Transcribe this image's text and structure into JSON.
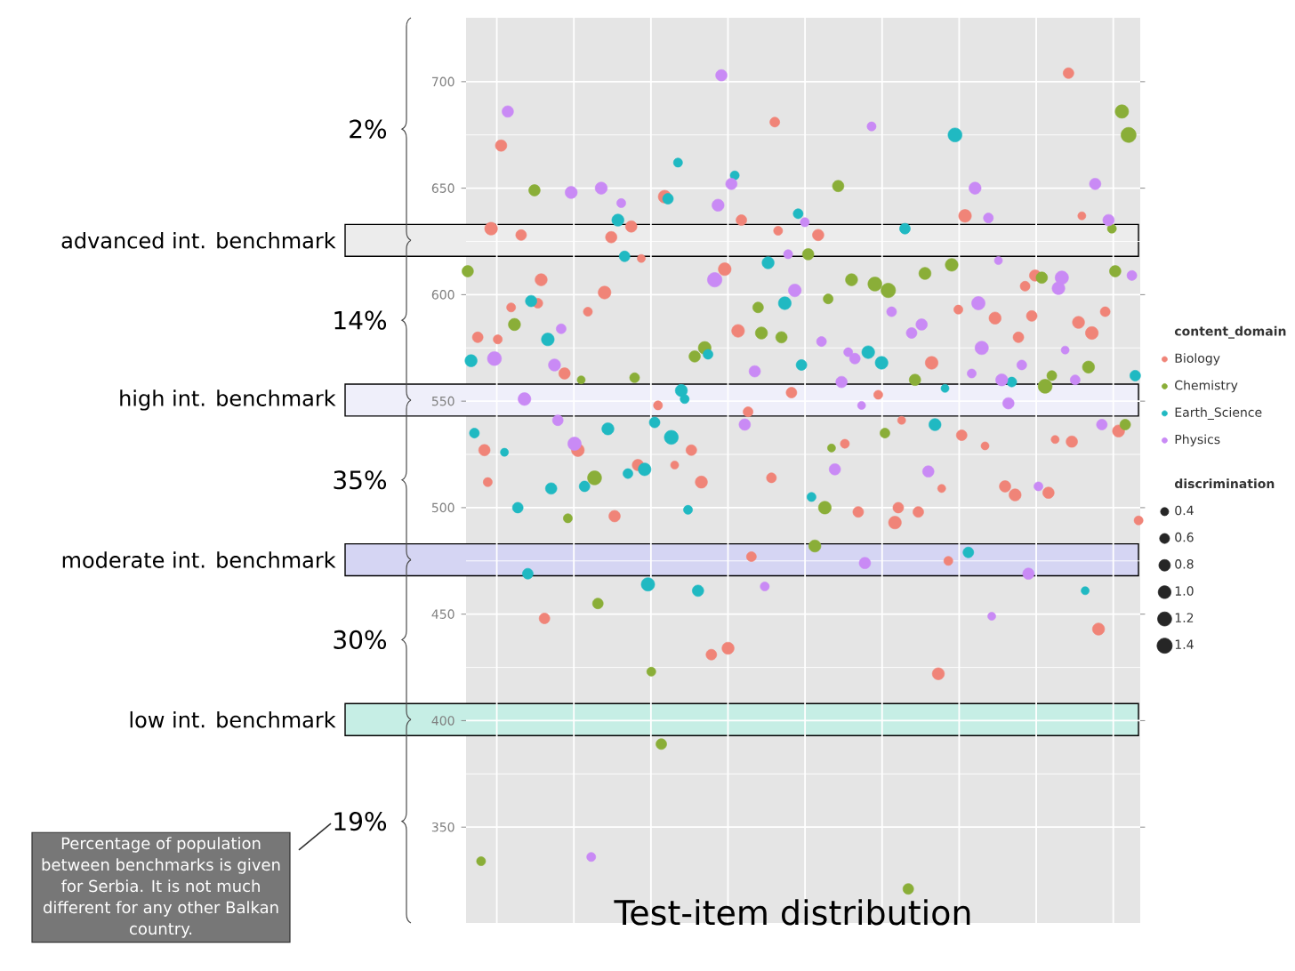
{
  "chart_data": {
    "type": "bubble",
    "title": "Test-item distribution",
    "categories": [
      null,
      null,
      null,
      null,
      null,
      null,
      null,
      null,
      null,
      null,
      null,
      null,
      null,
      null,
      null,
      null,
      null,
      null,
      null,
      null,
      null,
      null,
      null,
      null,
      null,
      null,
      null,
      null,
      null,
      null,
      null,
      null,
      null,
      null,
      null,
      null,
      null,
      null,
      null,
      null,
      null,
      null,
      null,
      null,
      null,
      null,
      null,
      null,
      null,
      null,
      null,
      null,
      null,
      null,
      null,
      null,
      null,
      null,
      null,
      null,
      null,
      null,
      null,
      null,
      null,
      null,
      null,
      null,
      null,
      null,
      null,
      null,
      null,
      null,
      null,
      null,
      null,
      null,
      null,
      null,
      null,
      null,
      null,
      null,
      null,
      null,
      null,
      null,
      null,
      null,
      null,
      null,
      null,
      null,
      null,
      null,
      null,
      null,
      null,
      null,
      null,
      null,
      null,
      null,
      null,
      null,
      null,
      null,
      null,
      null,
      null,
      null,
      null,
      null,
      null,
      null,
      null,
      null,
      null,
      null,
      null,
      null,
      null,
      null,
      null,
      null,
      null,
      null,
      null,
      null,
      null,
      null,
      null,
      null,
      null,
      null,
      null,
      null,
      null,
      null,
      null,
      null,
      null,
      null,
      null,
      null,
      null,
      null,
      null,
      null,
      null,
      null,
      null,
      null,
      null,
      null,
      null,
      null,
      null,
      null,
      null,
      null,
      null,
      null,
      null,
      null,
      null,
      null,
      null,
      null,
      null,
      null,
      null,
      null,
      null,
      null,
      null,
      null,
      null,
      null,
      null,
      null,
      null,
      null,
      null,
      null,
      null,
      null,
      null,
      null,
      null,
      null,
      null,
      null,
      null,
      null,
      null,
      null,
      null,
      null,
      null,
      null
    ],
    "series": [
      {
        "name": "Biology",
        "color": "#f08478",
        "values": [
          null,
          null,
          null,
          580,
          null,
          527,
          512,
          631,
          null,
          579,
          670,
          null,
          null,
          594,
          null,
          null,
          628,
          null,
          null,
          null,
          null,
          596,
          607,
          448,
          null,
          null,
          null,
          null,
          null,
          563,
          null,
          null,
          null,
          527,
          null,
          null,
          592,
          null,
          null,
          null,
          null,
          601,
          null,
          627,
          496,
          null,
          null,
          null,
          null,
          632,
          null,
          520,
          617,
          null,
          null,
          null,
          null,
          548,
          null,
          646,
          null,
          null,
          520,
          null,
          null,
          null,
          null,
          527,
          null,
          null,
          512,
          null,
          null,
          431,
          null,
          null,
          null,
          612,
          434,
          null,
          null,
          583,
          635,
          null,
          545,
          477,
          null,
          null,
          null,
          null,
          null,
          514,
          681,
          630,
          null,
          null,
          null,
          554,
          null,
          null,
          null,
          null,
          null,
          null,
          null,
          628,
          null,
          null,
          null,
          null,
          null,
          null,
          null,
          530,
          null,
          null,
          null,
          498,
          null,
          null,
          null,
          null,
          null,
          553,
          null,
          null,
          null,
          null,
          493,
          500,
          541,
          null,
          null,
          null,
          null,
          498,
          null,
          null,
          null,
          568,
          null,
          422,
          509,
          null,
          475,
          null,
          null,
          593,
          534,
          637,
          null,
          null,
          null,
          null,
          null,
          529,
          null,
          null,
          589,
          null,
          null,
          510,
          null,
          null,
          506,
          580,
          null,
          604,
          null,
          590,
          609,
          null,
          null,
          null,
          507,
          null,
          532,
          null,
          null,
          null,
          704,
          531,
          null,
          587,
          637,
          null,
          null,
          582,
          null,
          443,
          null,
          592,
          null,
          null,
          null,
          536,
          null,
          null,
          null,
          null,
          null,
          494
        ],
        "sizes": [
          null,
          null,
          null,
          0.7,
          null,
          0.8,
          0.5,
          1.0,
          null,
          0.5,
          0.8,
          null,
          null,
          0.5,
          null,
          null,
          0.7,
          null,
          null,
          null,
          null,
          0.6,
          0.9,
          0.7,
          null,
          null,
          null,
          null,
          null,
          0.8,
          null,
          null,
          null,
          1.0,
          null,
          null,
          0.5,
          null,
          null,
          null,
          null,
          1.0,
          null,
          0.8,
          0.8,
          null,
          null,
          null,
          null,
          0.8,
          null,
          0.8,
          0.4,
          null,
          null,
          null,
          null,
          0.5,
          null,
          1.0,
          null,
          null,
          0.4,
          null,
          null,
          null,
          null,
          0.7,
          null,
          null,
          0.9,
          null,
          null,
          0.7,
          null,
          null,
          null,
          1.0,
          0.9,
          null,
          null,
          1.0,
          0.7,
          null,
          0.6,
          0.6,
          null,
          null,
          null,
          null,
          null,
          0.6,
          0.6,
          0.5,
          null,
          null,
          null,
          0.7,
          null,
          null,
          null,
          null,
          null,
          null,
          null,
          0.8,
          null,
          null,
          null,
          null,
          null,
          null,
          null,
          0.5,
          null,
          null,
          null,
          0.7,
          null,
          null,
          null,
          null,
          null,
          0.5,
          null,
          null,
          null,
          null,
          1.0,
          0.7,
          0.4,
          null,
          null,
          null,
          null,
          0.7,
          null,
          null,
          null,
          1.0,
          null,
          0.9,
          0.4,
          null,
          0.5,
          null,
          null,
          0.5,
          0.7,
          1.0,
          null,
          null,
          null,
          null,
          null,
          0.4,
          null,
          null,
          0.9,
          null,
          null,
          0.8,
          null,
          null,
          0.9,
          0.7,
          null,
          0.6,
          null,
          0.7,
          0.8,
          null,
          null,
          null,
          0.8,
          null,
          0.4,
          null,
          null,
          null,
          0.7,
          0.8,
          null,
          0.9,
          0.4,
          null,
          null,
          1.0,
          null,
          0.9,
          null,
          0.6,
          null,
          null,
          null,
          0.9,
          null,
          null,
          null,
          null,
          null,
          0.5
        ]
      },
      {
        "name": "Chemistry",
        "color": "#8aae38",
        "values": [
          611,
          null,
          null,
          null,
          334,
          null,
          null,
          null,
          null,
          null,
          null,
          null,
          null,
          null,
          586,
          null,
          null,
          null,
          null,
          null,
          649,
          null,
          null,
          null,
          null,
          null,
          null,
          null,
          null,
          null,
          495,
          null,
          null,
          null,
          560,
          null,
          null,
          null,
          514,
          455,
          null,
          null,
          null,
          null,
          null,
          null,
          null,
          null,
          null,
          null,
          561,
          null,
          null,
          null,
          null,
          423,
          null,
          null,
          389,
          null,
          null,
          null,
          null,
          null,
          null,
          null,
          null,
          null,
          571,
          null,
          null,
          575,
          null,
          null,
          null,
          null,
          null,
          null,
          null,
          null,
          null,
          null,
          null,
          null,
          null,
          null,
          null,
          594,
          582,
          null,
          null,
          null,
          null,
          null,
          580,
          null,
          null,
          null,
          null,
          null,
          null,
          null,
          619,
          null,
          482,
          null,
          null,
          500,
          598,
          528,
          null,
          651,
          null,
          null,
          null,
          607,
          null,
          null,
          null,
          null,
          null,
          null,
          605,
          null,
          null,
          535,
          602,
          null,
          null,
          null,
          null,
          null,
          321,
          null,
          560,
          null,
          null,
          610,
          null,
          null,
          null,
          null,
          null,
          null,
          null,
          614,
          null,
          null,
          null,
          null,
          null,
          null,
          null,
          null,
          null,
          null,
          null,
          null,
          null,
          null,
          null,
          null,
          null,
          null,
          null,
          null,
          null,
          null,
          null,
          null,
          null,
          null,
          608,
          557,
          null,
          562,
          null,
          null,
          null,
          null,
          null,
          null,
          null,
          null,
          null,
          null,
          566,
          null,
          null,
          null,
          null,
          null,
          null,
          631,
          611,
          null,
          686,
          539,
          675,
          null,
          null,
          null
        ],
        "sizes": [
          0.8,
          null,
          null,
          null,
          0.5,
          null,
          null,
          null,
          null,
          null,
          null,
          null,
          null,
          null,
          0.9,
          null,
          null,
          null,
          null,
          null,
          0.8,
          null,
          null,
          null,
          null,
          null,
          null,
          null,
          null,
          null,
          0.5,
          null,
          null,
          null,
          0.4,
          null,
          null,
          null,
          1.2,
          0.7,
          null,
          null,
          null,
          null,
          null,
          null,
          null,
          null,
          null,
          null,
          0.6,
          null,
          null,
          null,
          null,
          0.5,
          null,
          null,
          0.7,
          null,
          null,
          null,
          null,
          null,
          null,
          null,
          null,
          null,
          0.8,
          null,
          null,
          1.0,
          null,
          null,
          null,
          null,
          null,
          null,
          null,
          null,
          null,
          null,
          null,
          null,
          null,
          null,
          null,
          0.7,
          0.9,
          null,
          null,
          null,
          null,
          null,
          0.8,
          null,
          null,
          null,
          null,
          null,
          null,
          null,
          0.8,
          null,
          0.9,
          null,
          null,
          1.0,
          0.6,
          0.4,
          null,
          0.8,
          null,
          null,
          null,
          0.9,
          null,
          null,
          null,
          null,
          null,
          null,
          1.2,
          null,
          null,
          0.6,
          1.3,
          null,
          null,
          null,
          null,
          null,
          0.7,
          null,
          0.8,
          null,
          null,
          0.9,
          null,
          null,
          null,
          null,
          null,
          null,
          null,
          1.0,
          null,
          null,
          null,
          null,
          null,
          null,
          null,
          null,
          null,
          null,
          null,
          null,
          null,
          null,
          null,
          null,
          null,
          null,
          null,
          null,
          null,
          null,
          null,
          null,
          null,
          null,
          0.8,
          1.2,
          null,
          0.6,
          null,
          null,
          null,
          null,
          null,
          null,
          null,
          null,
          null,
          null,
          0.9,
          null,
          null,
          null,
          null,
          null,
          null,
          0.5,
          0.8,
          null,
          1.1,
          0.7,
          1.4,
          null,
          null,
          null
        ]
      },
      {
        "name": "Earth_Science",
        "color": "#20b9c2",
        "values": [
          null,
          569,
          535,
          null,
          null,
          null,
          null,
          null,
          null,
          null,
          null,
          526,
          null,
          null,
          null,
          500,
          null,
          null,
          469,
          597,
          null,
          null,
          null,
          null,
          579,
          509,
          null,
          null,
          null,
          null,
          null,
          null,
          null,
          null,
          null,
          510,
          null,
          null,
          null,
          null,
          null,
          null,
          537,
          null,
          null,
          635,
          null,
          618,
          516,
          null,
          null,
          null,
          null,
          518,
          464,
          null,
          540,
          null,
          null,
          null,
          645,
          533,
          null,
          662,
          555,
          551,
          499,
          null,
          null,
          461,
          null,
          null,
          572,
          null,
          null,
          null,
          null,
          null,
          null,
          null,
          656,
          null,
          null,
          null,
          null,
          null,
          null,
          null,
          null,
          null,
          615,
          null,
          null,
          null,
          null,
          596,
          null,
          null,
          null,
          638,
          567,
          null,
          null,
          505,
          null,
          null,
          null,
          null,
          null,
          null,
          null,
          null,
          null,
          null,
          null,
          null,
          null,
          null,
          null,
          null,
          573,
          null,
          null,
          null,
          568,
          null,
          null,
          null,
          null,
          null,
          null,
          631,
          null,
          null,
          null,
          null,
          null,
          null,
          null,
          null,
          539,
          null,
          null,
          556,
          null,
          null,
          675,
          null,
          null,
          null,
          479,
          null,
          null,
          null,
          null,
          null,
          null,
          null,
          null,
          null,
          null,
          null,
          null,
          559,
          null,
          null,
          null,
          null,
          null,
          null,
          null,
          null,
          null,
          null,
          null,
          null,
          null,
          null,
          null,
          null,
          null,
          null,
          null,
          null,
          null,
          461,
          null,
          null,
          null,
          null,
          null,
          null,
          null,
          null,
          null,
          null,
          null,
          null,
          null,
          null,
          562,
          null
        ],
        "sizes": [
          null,
          0.9,
          0.6,
          null,
          null,
          null,
          null,
          null,
          null,
          null,
          null,
          0.4,
          null,
          null,
          null,
          0.7,
          null,
          null,
          0.7,
          0.8,
          null,
          null,
          null,
          null,
          1.0,
          0.8,
          null,
          null,
          null,
          null,
          null,
          null,
          null,
          null,
          null,
          0.7,
          null,
          null,
          null,
          null,
          null,
          null,
          0.9,
          null,
          null,
          0.9,
          null,
          0.7,
          0.6,
          null,
          null,
          null,
          null,
          1.0,
          1.1,
          null,
          0.7,
          null,
          null,
          null,
          0.7,
          1.2,
          null,
          0.5,
          0.9,
          0.5,
          0.5,
          null,
          null,
          0.8,
          null,
          null,
          0.6,
          null,
          null,
          null,
          null,
          null,
          null,
          null,
          0.5,
          null,
          null,
          null,
          null,
          null,
          null,
          null,
          null,
          null,
          0.9,
          null,
          null,
          null,
          null,
          1.0,
          null,
          null,
          null,
          0.6,
          0.7,
          null,
          null,
          0.5,
          null,
          null,
          null,
          null,
          null,
          null,
          null,
          null,
          null,
          null,
          null,
          null,
          null,
          null,
          null,
          null,
          1.0,
          null,
          null,
          null,
          1.0,
          null,
          null,
          null,
          null,
          null,
          null,
          0.7,
          null,
          null,
          null,
          null,
          null,
          null,
          null,
          null,
          0.9,
          null,
          null,
          0.4,
          null,
          null,
          1.2,
          null,
          null,
          null,
          0.7,
          null,
          null,
          null,
          null,
          null,
          null,
          null,
          null,
          null,
          null,
          null,
          null,
          0.6,
          null,
          null,
          null,
          null,
          null,
          null,
          null,
          null,
          null,
          null,
          null,
          null,
          null,
          null,
          null,
          null,
          null,
          null,
          null,
          null,
          null,
          0.4,
          null,
          null,
          null,
          null,
          null,
          null,
          null,
          null,
          null,
          null,
          null,
          null,
          null,
          null,
          0.7,
          null
        ]
      },
      {
        "name": "Physics",
        "color": "#c98af5",
        "values": [
          null,
          null,
          null,
          null,
          null,
          null,
          null,
          null,
          570,
          null,
          null,
          null,
          686,
          null,
          null,
          null,
          null,
          551,
          null,
          null,
          null,
          null,
          null,
          null,
          null,
          null,
          567,
          541,
          584,
          null,
          null,
          648,
          530,
          null,
          null,
          null,
          null,
          336,
          null,
          null,
          650,
          null,
          null,
          null,
          null,
          null,
          643,
          null,
          null,
          null,
          null,
          null,
          null,
          null,
          null,
          null,
          null,
          null,
          null,
          null,
          null,
          null,
          null,
          null,
          null,
          null,
          null,
          null,
          null,
          null,
          null,
          null,
          null,
          null,
          607,
          642,
          703,
          null,
          null,
          652,
          null,
          null,
          null,
          539,
          null,
          null,
          564,
          null,
          null,
          463,
          null,
          null,
          null,
          null,
          null,
          null,
          619,
          null,
          602,
          null,
          null,
          634,
          null,
          null,
          null,
          null,
          578,
          null,
          null,
          null,
          518,
          null,
          559,
          null,
          573,
          null,
          570,
          null,
          548,
          474,
          null,
          679,
          null,
          null,
          null,
          null,
          null,
          592,
          null,
          null,
          null,
          null,
          null,
          582,
          null,
          null,
          586,
          null,
          517,
          null,
          null,
          null,
          null,
          null,
          null,
          null,
          null,
          null,
          null,
          null,
          null,
          563,
          650,
          596,
          575,
          null,
          636,
          449,
          null,
          616,
          560,
          null,
          549,
          null,
          null,
          null,
          567,
          null,
          469,
          null,
          null,
          510,
          null,
          null,
          null,
          null,
          null,
          603,
          608,
          574,
          null,
          null,
          560,
          null,
          null,
          null,
          null,
          null,
          652,
          null,
          539,
          null,
          635,
          null,
          null,
          null,
          null,
          null,
          null,
          609,
          null,
          null
        ],
        "sizes": [
          null,
          null,
          null,
          null,
          null,
          null,
          null,
          null,
          1.2,
          null,
          null,
          null,
          0.8,
          null,
          null,
          null,
          null,
          1.0,
          null,
          null,
          null,
          null,
          null,
          null,
          null,
          null,
          0.9,
          0.7,
          0.6,
          null,
          null,
          0.9,
          1.1,
          null,
          null,
          null,
          null,
          0.5,
          null,
          null,
          0.9,
          null,
          null,
          null,
          null,
          null,
          0.5,
          null,
          null,
          null,
          null,
          null,
          null,
          null,
          null,
          null,
          null,
          null,
          null,
          null,
          null,
          null,
          null,
          null,
          null,
          null,
          null,
          null,
          null,
          null,
          null,
          null,
          null,
          null,
          1.3,
          0.9,
          0.8,
          null,
          null,
          0.8,
          null,
          null,
          null,
          0.8,
          null,
          null,
          0.8,
          null,
          null,
          0.5,
          null,
          null,
          null,
          null,
          null,
          null,
          0.5,
          null,
          1.0,
          null,
          null,
          0.5,
          null,
          null,
          null,
          null,
          0.6,
          null,
          null,
          null,
          0.8,
          null,
          0.8,
          null,
          0.5,
          null,
          0.7,
          null,
          0.4,
          0.8,
          null,
          0.5,
          null,
          null,
          null,
          null,
          null,
          0.6,
          null,
          null,
          null,
          null,
          null,
          0.7,
          null,
          null,
          0.8,
          null,
          0.8,
          null,
          null,
          null,
          null,
          null,
          null,
          null,
          null,
          null,
          null,
          null,
          null,
          0.5,
          0.9,
          1.1,
          1.1,
          null,
          0.6,
          0.4,
          null,
          0.4,
          0.9,
          null,
          0.8,
          null,
          null,
          null,
          0.6,
          null,
          0.8,
          null,
          null,
          0.5,
          null,
          null,
          null,
          null,
          null,
          1.0,
          1.1,
          0.4,
          null,
          null,
          0.6,
          null,
          null,
          null,
          null,
          null,
          0.8,
          null,
          0.7,
          null,
          0.8,
          null,
          null,
          null,
          null,
          null,
          null,
          0.6,
          null,
          null
        ]
      }
    ],
    "size_legend": [
      0.4,
      0.6,
      0.8,
      {
        "value": 1,
        "label": "1.0"
      },
      1.2,
      1.4
    ],
    "legend_title": "content_domain",
    "legend": "right",
    "marker": "circle",
    "ylim": [
      305,
      730
    ],
    "yticks": [
      350,
      400,
      450,
      500,
      550,
      600,
      650,
      700
    ],
    "grid": true,
    "bands": [
      {
        "axis": "y",
        "from": 618,
        "to": 633,
        "label": "advanced int. benchmark",
        "color": "#ececec"
      },
      {
        "axis": "y",
        "from": 543,
        "to": 558,
        "label": "high int. benchmark",
        "color": "#efeffa"
      },
      {
        "axis": "y",
        "from": 468,
        "to": 483,
        "label": "moderate int. benchmark",
        "color": "#d5d5f3"
      },
      {
        "axis": "y",
        "from": 393,
        "to": 408,
        "label": "low int. benchmark",
        "color": "#c6eee5"
      }
    ],
    "annotations": [
      "2%",
      "14%",
      "35%",
      "30%",
      "19%",
      "Percentage of population between benchmarks is given for Serbia. It is not much different for any other Balkan country.",
      "discrimination"
    ]
  }
}
